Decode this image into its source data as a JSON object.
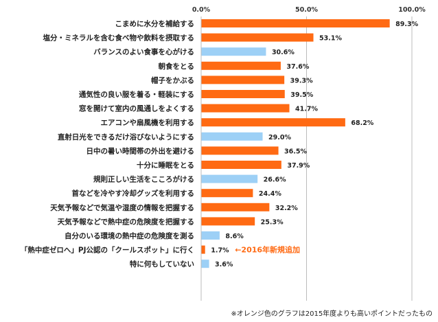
{
  "chart_data": {
    "type": "bar",
    "orientation": "horizontal",
    "xlim": [
      0,
      100
    ],
    "tick_labels": [
      "0.0%",
      "50.0%",
      "100.0%"
    ],
    "tick_values": [
      0,
      50,
      100
    ],
    "categories": [
      "こまめに水分を補給する",
      "塩分・ミネラルを含む食べ物や飲料を摂取する",
      "バランスのよい食事を心がける",
      "朝食をとる",
      "帽子をかぶる",
      "通気性の良い服を着る・軽装にする",
      "窓を開けて室内の風通しをよくする",
      "エアコンや扇風機を利用する",
      "直射日光をできるだけ浴びないようにする",
      "日中の暑い時間帯の外出を避ける",
      "十分に睡眠をとる",
      "規則正しい生活をこころがける",
      "首などを冷やす冷却グッズを利用する",
      "天気予報などで気温や湿度の情報を把握する",
      "天気予報などで熱中症の危険度を把握する",
      "自分のいる環境の熱中症の危険度を測る",
      "「熱中症ゼロへ」PJ公認の「クールスポット」に行く",
      "特に何もしていない"
    ],
    "values": [
      89.3,
      53.1,
      30.6,
      37.6,
      39.3,
      39.5,
      41.7,
      68.2,
      29.0,
      36.5,
      37.9,
      26.6,
      24.4,
      32.2,
      25.3,
      8.6,
      1.7,
      3.6
    ],
    "value_labels": [
      "89.3%",
      "53.1%",
      "30.6%",
      "37.6%",
      "39.3%",
      "39.5%",
      "41.7%",
      "68.2%",
      "29.0%",
      "36.5%",
      "37.9%",
      "26.6%",
      "24.4%",
      "32.2%",
      "25.3%",
      "8.6%",
      "1.7%",
      "3.6%"
    ],
    "bar_colors": [
      "orange",
      "orange",
      "blue",
      "orange",
      "orange",
      "orange",
      "orange",
      "orange",
      "blue",
      "orange",
      "orange",
      "blue",
      "orange",
      "orange",
      "orange",
      "blue",
      "orange",
      "blue"
    ],
    "colors": {
      "orange": "#ff6a13",
      "blue": "#9dd0f6",
      "grid": "#bbbbbb",
      "annotation": "#ff6a13"
    },
    "annotation": {
      "category_index": 16,
      "text": "←2016年新規追加"
    },
    "footnote": "※オレンジ色のグラフは2015年度よりも高いポイントだったもの"
  }
}
